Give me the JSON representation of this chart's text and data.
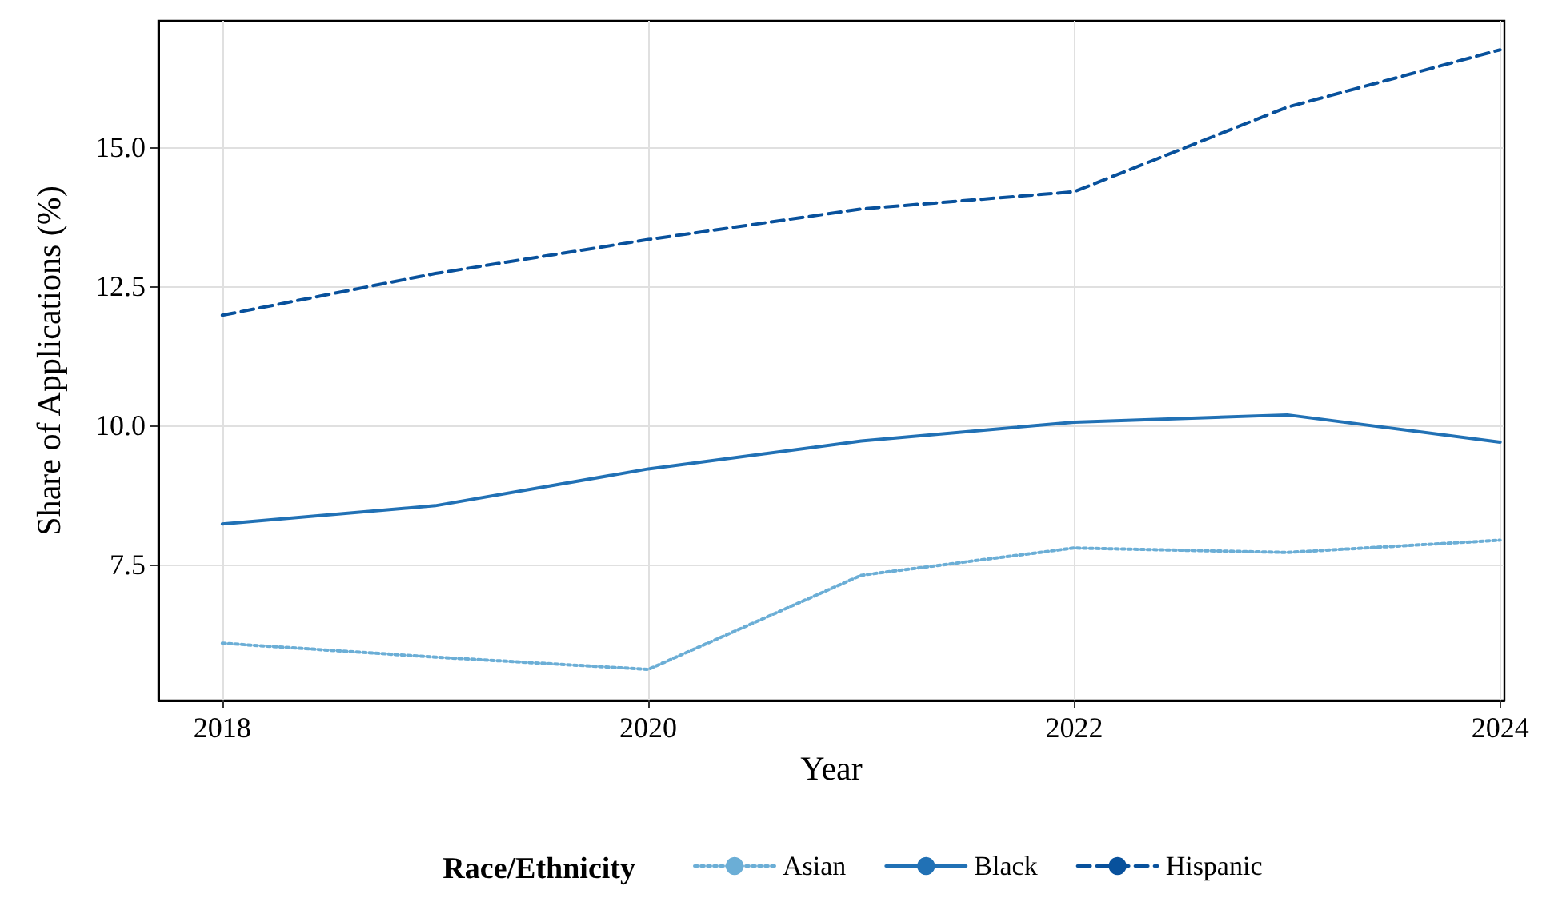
{
  "chart_data": {
    "type": "line",
    "xlabel": "Year",
    "ylabel": "Share of Applications (%)",
    "legend_title": "Race/Ethnicity",
    "x": [
      2018,
      2019,
      2020,
      2021,
      2022,
      2023,
      2024
    ],
    "series": [
      {
        "name": "Asian",
        "color": "#6baed6",
        "line_style": "dotted",
        "values": [
          6.09,
          5.84,
          5.62,
          7.31,
          7.8,
          7.72,
          7.94
        ]
      },
      {
        "name": "Black",
        "color": "#2171b5",
        "line_style": "solid",
        "values": [
          8.23,
          8.56,
          9.22,
          9.72,
          10.06,
          10.19,
          9.7
        ]
      },
      {
        "name": "Hispanic",
        "color": "#08519c",
        "line_style": "dashed",
        "values": [
          11.98,
          12.73,
          13.34,
          13.89,
          14.2,
          15.72,
          16.75
        ]
      }
    ],
    "xlim": [
      2017.7,
      2024.02
    ],
    "xticks": [
      2018,
      2020,
      2022,
      2024
    ],
    "ylim": [
      5.06,
      17.27
    ],
    "yticks": [
      7.5,
      {
        "value": 10,
        "label": "10.0"
      },
      12.5,
      {
        "value": 15,
        "label": "15.0"
      }
    ],
    "grid": true,
    "legend": "bottom",
    "marker": "none"
  }
}
